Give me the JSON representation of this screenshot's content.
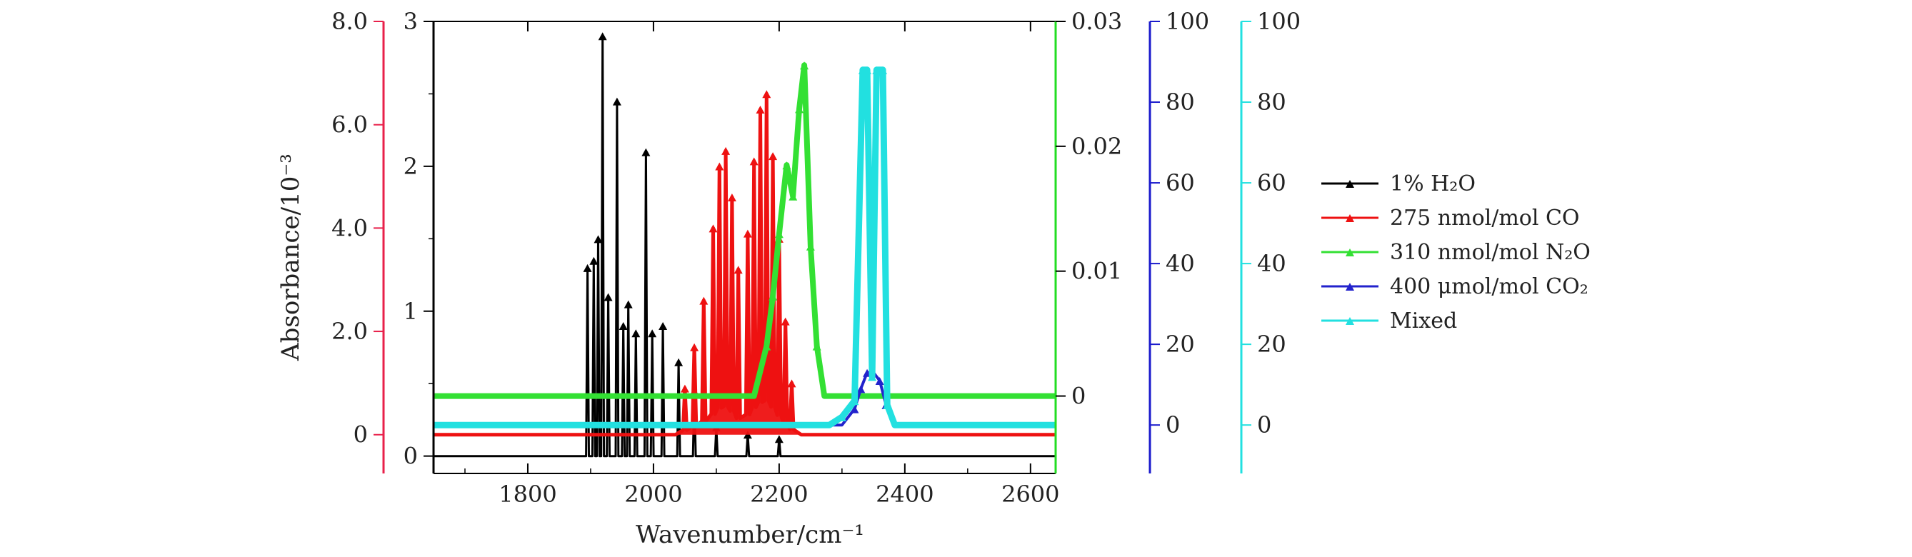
{
  "chart_data": {
    "type": "line",
    "title": "",
    "xlabel": "Wavenumber/cm⁻¹",
    "ylabel": "Absorbance/10⁻³",
    "xlim": [
      1650,
      2640
    ],
    "x_ticks": [
      1800,
      2000,
      2200,
      2400,
      2600
    ],
    "axes": [
      {
        "name": "left-red",
        "range": [
          -0.75,
          8.0
        ],
        "ticks": [
          {
            "v": 0,
            "label": "0"
          },
          {
            "v": 2.0,
            "label": "2.0"
          },
          {
            "v": 4.0,
            "label": "4.0"
          },
          {
            "v": 6.0,
            "label": "6.0"
          },
          {
            "v": 8.0,
            "label": "8.0"
          }
        ],
        "color": "#e8204a"
      },
      {
        "name": "left-black",
        "range": [
          -0.12,
          3.0
        ],
        "ticks": [
          {
            "v": 0,
            "label": "0"
          },
          {
            "v": 1,
            "label": "1"
          },
          {
            "v": 2,
            "label": "2"
          },
          {
            "v": 3,
            "label": "3"
          }
        ],
        "color": "#000000"
      },
      {
        "name": "right-green",
        "range": [
          -0.0062,
          0.03
        ],
        "ticks": [
          {
            "v": 0,
            "label": "0"
          },
          {
            "v": 0.01,
            "label": "0.01"
          },
          {
            "v": 0.02,
            "label": "0.02"
          },
          {
            "v": 0.03,
            "label": "0.03"
          }
        ],
        "color": "#22dd22"
      },
      {
        "name": "right-blue",
        "range": [
          -12,
          100
        ],
        "ticks": [
          {
            "v": 0,
            "label": "0"
          },
          {
            "v": 20,
            "label": "20"
          },
          {
            "v": 40,
            "label": "40"
          },
          {
            "v": 60,
            "label": "60"
          },
          {
            "v": 80,
            "label": "80"
          },
          {
            "v": 100,
            "label": "100"
          }
        ],
        "color": "#1a1acc"
      },
      {
        "name": "right-cyan",
        "range": [
          -12,
          100
        ],
        "ticks": [
          {
            "v": 0,
            "label": "0"
          },
          {
            "v": 20,
            "label": "20"
          },
          {
            "v": 40,
            "label": "40"
          },
          {
            "v": 60,
            "label": "60"
          },
          {
            "v": 80,
            "label": "80"
          },
          {
            "v": 100,
            "label": "100"
          }
        ],
        "color": "#22e0e0"
      }
    ],
    "series": [
      {
        "name": "1% H₂O",
        "color": "#000000",
        "axis": "left-black",
        "baseline": 0.0,
        "peaks": [
          [
            1895,
            1.3
          ],
          [
            1905,
            1.35
          ],
          [
            1912,
            1.5
          ],
          [
            1919,
            2.9
          ],
          [
            1928,
            1.1
          ],
          [
            1942,
            2.45
          ],
          [
            1952,
            0.9
          ],
          [
            1960,
            1.05
          ],
          [
            1972,
            0.85
          ],
          [
            1988,
            2.1
          ],
          [
            1998,
            0.85
          ],
          [
            2015,
            0.9
          ],
          [
            2040,
            0.65
          ],
          [
            2065,
            0.45
          ],
          [
            2100,
            0.2
          ],
          [
            2150,
            0.15
          ],
          [
            2200,
            0.12
          ]
        ]
      },
      {
        "name": "275 nmol/mol CO",
        "color": "#ee1111",
        "axis": "left-red",
        "baseline": 0.0,
        "band": {
          "centers": [
            2115,
            2172
          ],
          "sigma": 20,
          "peaks": [
            [
              2050,
              0.9
            ],
            [
              2065,
              1.7
            ],
            [
              2080,
              2.6
            ],
            [
              2095,
              4.0
            ],
            [
              2105,
              5.2
            ],
            [
              2115,
              5.5
            ],
            [
              2125,
              4.6
            ],
            [
              2135,
              3.2
            ],
            [
              2150,
              3.9
            ],
            [
              2160,
              5.3
            ],
            [
              2170,
              6.3
            ],
            [
              2180,
              6.6
            ],
            [
              2190,
              5.4
            ],
            [
              2200,
              3.8
            ],
            [
              2210,
              2.2
            ],
            [
              2220,
              1.0
            ]
          ]
        }
      },
      {
        "name": "310 nmol/mol N₂O",
        "color": "#33e033",
        "axis": "right-green",
        "baseline": 0.0,
        "peaks": [
          [
            2180,
            0.004
          ],
          [
            2190,
            0.008
          ],
          [
            2200,
            0.013
          ],
          [
            2212,
            0.0185
          ],
          [
            2222,
            0.016
          ],
          [
            2232,
            0.023
          ],
          [
            2240,
            0.0265
          ],
          [
            2250,
            0.012
          ],
          [
            2260,
            0.004
          ]
        ]
      },
      {
        "name": "400 μmol/mol CO₂",
        "color": "#2222cc",
        "axis": "right-blue",
        "baseline": 0.0,
        "peaks": [
          [
            2320,
            4
          ],
          [
            2330,
            9
          ],
          [
            2340,
            13
          ],
          [
            2350,
            13
          ],
          [
            2360,
            11
          ],
          [
            2370,
            5
          ]
        ]
      },
      {
        "name": "Mixed",
        "color": "#22e0e0",
        "axis": "right-cyan",
        "baseline": 0.0,
        "peaks": [
          [
            2300,
            2
          ],
          [
            2320,
            6
          ],
          [
            2333,
            88
          ],
          [
            2340,
            88
          ],
          [
            2348,
            12
          ],
          [
            2355,
            88
          ],
          [
            2365,
            88
          ],
          [
            2372,
            5
          ]
        ]
      }
    ],
    "legend": {
      "position": "right",
      "entries": [
        "1% H₂O",
        "275 nmol/mol CO",
        "310 nmol/mol N₂O",
        "400 μmol/mol CO₂",
        "Mixed"
      ]
    },
    "grid": false
  }
}
